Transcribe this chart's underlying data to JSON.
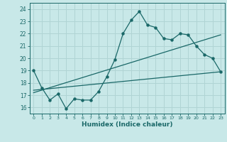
{
  "xlabel": "Humidex (Indice chaleur)",
  "xlim": [
    -0.5,
    23.5
  ],
  "ylim": [
    15.5,
    24.5
  ],
  "xticks": [
    0,
    1,
    2,
    3,
    4,
    5,
    6,
    7,
    8,
    9,
    10,
    11,
    12,
    13,
    14,
    15,
    16,
    17,
    18,
    19,
    20,
    21,
    22,
    23
  ],
  "yticks": [
    16,
    17,
    18,
    19,
    20,
    21,
    22,
    23,
    24
  ],
  "bg_color": "#c8e8e8",
  "grid_color": "#b0d4d4",
  "line_color": "#1a6868",
  "line1_x": [
    0,
    1,
    2,
    3,
    4,
    5,
    6,
    7,
    8,
    9,
    10,
    11,
    12,
    13,
    14,
    15,
    16,
    17,
    18,
    19,
    20,
    21,
    22,
    23
  ],
  "line1_y": [
    19.0,
    17.6,
    16.6,
    17.1,
    15.9,
    16.7,
    16.6,
    16.6,
    17.3,
    18.5,
    19.9,
    22.0,
    23.1,
    23.8,
    22.7,
    22.5,
    21.6,
    21.5,
    22.0,
    21.9,
    21.0,
    20.3,
    20.0,
    18.9
  ],
  "line2_x": [
    0,
    23
  ],
  "line2_y": [
    17.4,
    18.9
  ],
  "line3_x": [
    0,
    23
  ],
  "line3_y": [
    17.2,
    21.9
  ]
}
